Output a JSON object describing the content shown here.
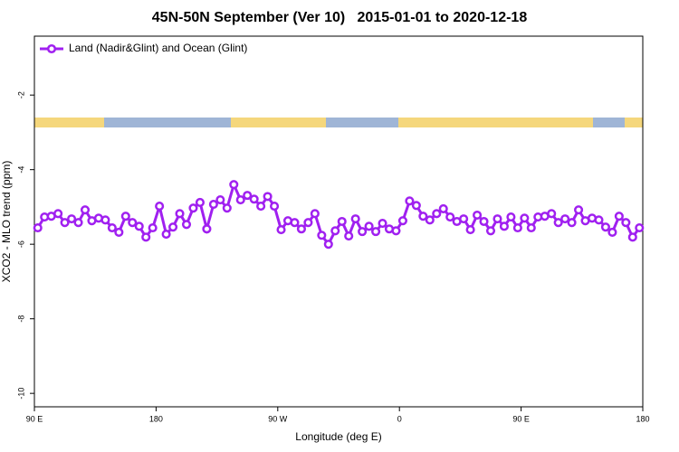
{
  "chart_data": {
    "type": "line",
    "title": "45N-50N September (Ver 10)   2015-01-01 to 2020-12-18",
    "xlabel": "Longitude (deg E)",
    "ylabel": "XCO2 - MLO trend (ppm)",
    "x": [
      92.5,
      97.5,
      102.5,
      107.5,
      112.5,
      117.5,
      122.5,
      127.5,
      132.5,
      137.5,
      142.5,
      147.5,
      152.5,
      157.5,
      162.5,
      167.5,
      172.5,
      177.5,
      182.5,
      187.5,
      192.5,
      197.5,
      202.5,
      207.5,
      212.5,
      217.5,
      222.5,
      227.5,
      232.5,
      237.5,
      242.5,
      247.5,
      252.5,
      257.5,
      262.5,
      267.5,
      272.5,
      277.5,
      282.5,
      287.5,
      292.5,
      297.5,
      302.5,
      307.5,
      312.5,
      317.5,
      322.5,
      327.5,
      332.5,
      337.5,
      342.5,
      347.5,
      352.5,
      357.5,
      362.5,
      367.5,
      372.5,
      377.5,
      382.5,
      387.5,
      392.5,
      397.5,
      402.5,
      407.5,
      412.5,
      417.5,
      422.5,
      427.5,
      432.5,
      437.5,
      442.5,
      447.5,
      452.5,
      457.5,
      462.5,
      467.5,
      472.5,
      477.5,
      482.5,
      487.5,
      492.5,
      497.5,
      502.5,
      507.5,
      512.5,
      517.5,
      522.5,
      527.5,
      532.5,
      537.5
    ],
    "series": [
      {
        "name": "Land (Nadir&Glint) and Ocean (Glint)",
        "color": "#a020f0",
        "values": [
          -5.56,
          -5.27,
          -5.25,
          -5.18,
          -5.42,
          -5.32,
          -5.42,
          -5.08,
          -5.37,
          -5.3,
          -5.35,
          -5.56,
          -5.68,
          -5.25,
          -5.42,
          -5.52,
          -5.81,
          -5.56,
          -4.98,
          -5.73,
          -5.54,
          -5.18,
          -5.47,
          -5.03,
          -4.88,
          -5.59,
          -4.93,
          -4.81,
          -5.03,
          -4.4,
          -4.81,
          -4.69,
          -4.79,
          -4.98,
          -4.72,
          -4.98,
          -5.61,
          -5.37,
          -5.42,
          -5.59,
          -5.42,
          -5.18,
          -5.76,
          -6.0,
          -5.64,
          -5.39,
          -5.78,
          -5.32,
          -5.66,
          -5.52,
          -5.66,
          -5.44,
          -5.59,
          -5.64,
          -5.37,
          -4.84,
          -4.96,
          -5.25,
          -5.35,
          -5.18,
          -5.05,
          -5.27,
          -5.39,
          -5.32,
          -5.61,
          -5.22,
          -5.39,
          -5.64,
          -5.32,
          -5.52,
          -5.27,
          -5.56,
          -5.3,
          -5.56,
          -5.27,
          -5.25,
          -5.18,
          -5.42,
          -5.32,
          -5.42,
          -5.08,
          -5.37,
          -5.3,
          -5.35,
          -5.54,
          -5.68,
          -5.25,
          -5.42,
          -5.81,
          -5.56
        ]
      }
    ],
    "xlim": [
      90,
      540
    ],
    "xticks": [
      {
        "value": 90,
        "label": "90 E"
      },
      180,
      {
        "value": 270,
        "label": "90 W"
      },
      {
        "value": 360,
        "label": "0"
      },
      {
        "value": 450,
        "label": "90 E"
      },
      {
        "value": 540,
        "label": "180"
      }
    ],
    "ylim": [
      -10.36,
      -0.42
    ],
    "yticks": [
      -2,
      -4,
      -6,
      -8,
      -10
    ],
    "legend": "upper left"
  }
}
